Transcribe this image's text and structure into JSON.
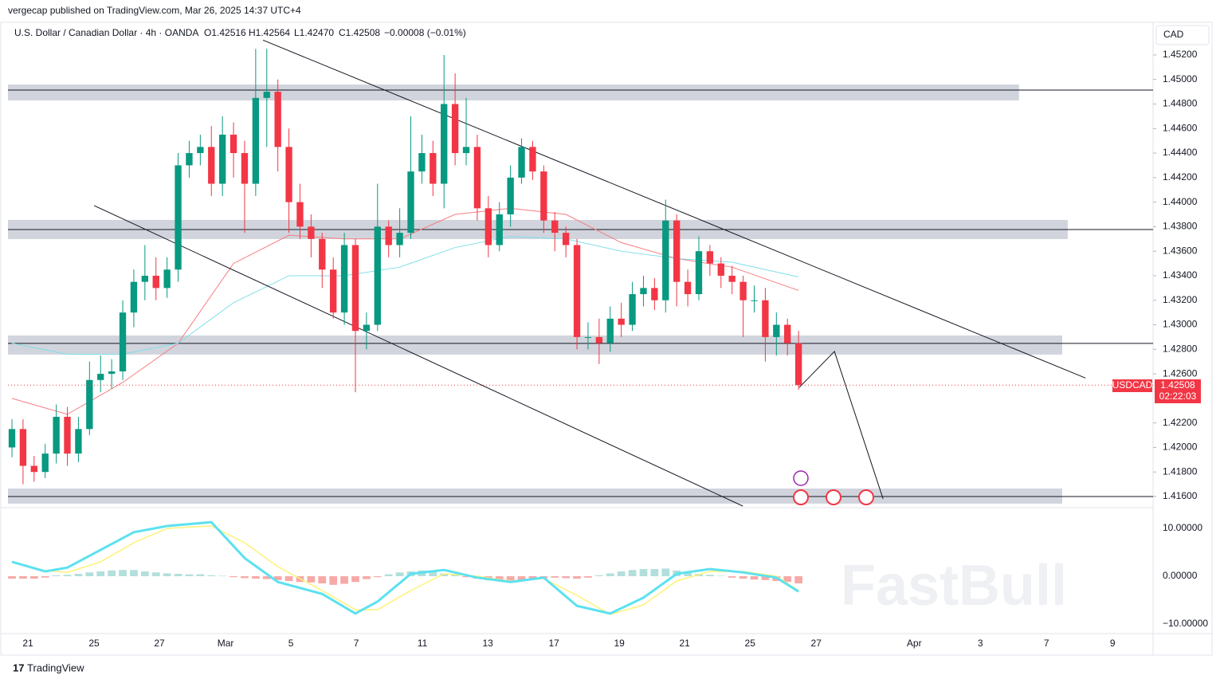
{
  "header": {
    "publisher": "vergecap published on TradingView.com, Mar 26, 2025 14:37 UTC+4",
    "symbol": "U.S. Dollar / Canadian Dollar · 4h · OANDA",
    "open": "O1.42516",
    "high": "H1.42564",
    "low": "L1.42470",
    "close": "C1.42508",
    "change": "−0.00008 (−0.01%)",
    "currency": "CAD"
  },
  "price_tag": {
    "symbol": "USDCAD",
    "price": "1.42508",
    "countdown": "02:22:03"
  },
  "watermark": "FastBull",
  "footer": "TradingView",
  "chart_data": [
    {
      "type": "candlestick",
      "up_color": "#089981",
      "down_color": "#f23645",
      "xlim": [
        -0.36,
        103.0
      ],
      "ylim": [
        1.41509,
        1.45466
      ],
      "xticks": [
        {
          "value": 1.44,
          "label": "21"
        },
        {
          "value": 7.41,
          "label": "25"
        },
        {
          "value": 13.31,
          "label": "27"
        },
        {
          "value": 19.28,
          "label": "Mar"
        },
        {
          "value": 25.18,
          "label": "5"
        },
        {
          "value": 31.08,
          "label": "7"
        },
        {
          "value": 37.05,
          "label": "11"
        },
        {
          "value": 42.95,
          "label": "13"
        },
        {
          "value": 48.92,
          "label": "17"
        },
        {
          "value": 54.82,
          "label": "19"
        },
        {
          "value": 60.72,
          "label": "21"
        },
        {
          "value": 66.62,
          "label": "25"
        },
        {
          "value": 72.59,
          "label": "27"
        },
        {
          "value": 81.44,
          "label": "Apr"
        },
        {
          "value": 87.41,
          "label": "3"
        },
        {
          "value": 93.38,
          "label": "7"
        },
        {
          "value": 99.35,
          "label": "9"
        }
      ],
      "yticks": [
        {
          "value": 1.452,
          "label": "1.45200"
        },
        {
          "value": 1.45,
          "label": "1.45000"
        },
        {
          "value": 1.448,
          "label": "1.44800"
        },
        {
          "value": 1.446,
          "label": "1.44600"
        },
        {
          "value": 1.444,
          "label": "1.44400"
        },
        {
          "value": 1.442,
          "label": "1.44200"
        },
        {
          "value": 1.44,
          "label": "1.44000"
        },
        {
          "value": 1.438,
          "label": "1.43800"
        },
        {
          "value": 1.436,
          "label": "1.43600"
        },
        {
          "value": 1.434,
          "label": "1.43400"
        },
        {
          "value": 1.432,
          "label": "1.43200"
        },
        {
          "value": 1.43,
          "label": "1.43000"
        },
        {
          "value": 1.428,
          "label": "1.42800"
        },
        {
          "value": 1.426,
          "label": "1.42600"
        },
        {
          "value": 1.422,
          "label": "1.42200"
        },
        {
          "value": 1.42,
          "label": "1.42000"
        },
        {
          "value": 1.418,
          "label": "1.41800"
        },
        {
          "value": 1.416,
          "label": "1.41600"
        }
      ],
      "open": [
        1.42,
        1.4215,
        1.4185,
        1.418,
        1.4195,
        1.4225,
        1.4195,
        1.4215,
        1.4255,
        1.426,
        1.4262,
        1.431,
        1.4335,
        1.434,
        1.433,
        1.4345,
        1.443,
        1.444,
        1.4445,
        1.4415,
        1.4455,
        1.444,
        1.4415,
        1.4485,
        1.449,
        1.4445,
        1.44,
        1.438,
        1.437,
        1.4345,
        1.431,
        1.4365,
        1.4295,
        1.43,
        1.438,
        1.4365,
        1.4375,
        1.4425,
        1.444,
        1.4415,
        1.448,
        1.444,
        1.4445,
        1.4395,
        1.4365,
        1.439,
        1.442,
        1.4445,
        1.4425,
        1.4385,
        1.4375,
        1.4365,
        1.429,
        1.429,
        1.4285,
        1.4305,
        1.43,
        1.4325,
        1.433,
        1.432,
        1.4385,
        1.4335,
        1.4325,
        1.436,
        1.435,
        1.434,
        1.4335,
        1.432,
        1.432,
        1.429,
        1.43,
        1.4285
      ],
      "high": [
        1.4223,
        1.4223,
        1.4193,
        1.4203,
        1.4235,
        1.4233,
        1.4225,
        1.427,
        1.4275,
        1.4272,
        1.432,
        1.4345,
        1.4365,
        1.4355,
        1.4355,
        1.444,
        1.445,
        1.4455,
        1.4462,
        1.447,
        1.4465,
        1.445,
        1.4525,
        1.4525,
        1.45,
        1.446,
        1.4415,
        1.439,
        1.4375,
        1.4355,
        1.4375,
        1.437,
        1.431,
        1.4415,
        1.4385,
        1.4395,
        1.447,
        1.4455,
        1.445,
        1.452,
        1.4505,
        1.4485,
        1.4455,
        1.4405,
        1.44,
        1.443,
        1.4452,
        1.445,
        1.443,
        1.4392,
        1.438,
        1.437,
        1.4302,
        1.4305,
        1.4315,
        1.4318,
        1.4335,
        1.434,
        1.4338,
        1.4402,
        1.439,
        1.4345,
        1.4372,
        1.4365,
        1.4355,
        1.4348,
        1.434,
        1.4332,
        1.433,
        1.431,
        1.4305,
        1.4295
      ],
      "low": [
        1.4192,
        1.417,
        1.4172,
        1.4175,
        1.4187,
        1.4185,
        1.4188,
        1.421,
        1.4245,
        1.4248,
        1.4255,
        1.4298,
        1.432,
        1.432,
        1.4322,
        1.4335,
        1.442,
        1.443,
        1.4405,
        1.4405,
        1.442,
        1.4375,
        1.4405,
        1.4445,
        1.4425,
        1.4375,
        1.437,
        1.4355,
        1.433,
        1.4305,
        1.43,
        1.4245,
        1.428,
        1.4295,
        1.4355,
        1.4355,
        1.437,
        1.4415,
        1.4405,
        1.4395,
        1.443,
        1.443,
        1.4385,
        1.4355,
        1.436,
        1.438,
        1.4415,
        1.4418,
        1.4375,
        1.436,
        1.4355,
        1.428,
        1.428,
        1.4268,
        1.4278,
        1.429,
        1.4295,
        1.4315,
        1.4312,
        1.431,
        1.4315,
        1.4315,
        1.432,
        1.434,
        1.433,
        1.4325,
        1.429,
        1.431,
        1.427,
        1.4275,
        1.4275,
        1.4247
      ],
      "close": [
        1.4215,
        1.4185,
        1.418,
        1.4195,
        1.4225,
        1.4195,
        1.4215,
        1.4255,
        1.426,
        1.4262,
        1.431,
        1.4335,
        1.434,
        1.433,
        1.4345,
        1.443,
        1.444,
        1.4445,
        1.4415,
        1.4455,
        1.444,
        1.4415,
        1.4485,
        1.449,
        1.4445,
        1.44,
        1.438,
        1.437,
        1.4345,
        1.431,
        1.4365,
        1.4295,
        1.43,
        1.438,
        1.4365,
        1.4375,
        1.4425,
        1.444,
        1.4415,
        1.448,
        1.444,
        1.4445,
        1.4395,
        1.4365,
        1.439,
        1.442,
        1.4445,
        1.4425,
        1.4385,
        1.4375,
        1.4365,
        1.429,
        1.429,
        1.4285,
        1.4305,
        1.43,
        1.4325,
        1.433,
        1.432,
        1.4385,
        1.4335,
        1.4325,
        1.436,
        1.435,
        1.434,
        1.4335,
        1.432,
        1.432,
        1.429,
        1.43,
        1.4285,
        1.42508
      ],
      "series": [
        {
          "color": "#f77c80",
          "x": [
            0,
            5,
            10,
            15,
            20,
            25,
            30,
            35,
            40,
            45,
            50,
            55,
            60,
            65,
            71
          ],
          "values": [
            1.424,
            1.4227,
            1.4253,
            1.4285,
            1.435,
            1.4373,
            1.437,
            1.437,
            1.439,
            1.4395,
            1.439,
            1.4367,
            1.4354,
            1.4347,
            1.4328
          ]
        },
        {
          "color": "#80deea",
          "x": [
            0,
            5,
            10,
            15,
            20,
            25,
            30,
            35,
            40,
            45,
            50,
            55,
            60,
            65,
            71
          ],
          "values": [
            1.4285,
            1.4276,
            1.4276,
            1.4285,
            1.4318,
            1.434,
            1.434,
            1.4347,
            1.4363,
            1.4372,
            1.437,
            1.436,
            1.4354,
            1.4351,
            1.4339
          ]
        }
      ],
      "zones": [
        {
          "x": [
            -0.36,
            90.9
          ],
          "y": [
            1.44829,
            1.44959
          ],
          "line": 1.44914
        },
        {
          "x": [
            -0.36,
            95.3
          ],
          "y": [
            1.43699,
            1.43855
          ],
          "line": 1.43777
        },
        {
          "x": [
            -0.36,
            94.8
          ],
          "y": [
            1.42757,
            1.42913
          ],
          "line": 1.42848
        },
        {
          "x": [
            -0.36,
            94.8
          ],
          "y": [
            1.41542,
            1.41665
          ],
          "line": 1.416
        }
      ],
      "lines": [
        {
          "x": [
            22.66,
            96.9
          ],
          "y": [
            1.45321,
            1.42566
          ]
        },
        {
          "x": [
            7.41,
            65.97
          ],
          "y": [
            1.43972,
            1.41522
          ]
        },
        {
          "x": [
            71.07,
            74.24,
            78.63
          ],
          "y": [
            1.4249,
            1.42783,
            1.41581
          ]
        }
      ]
    },
    {
      "type": "macd",
      "xlim": [
        -0.36,
        103.0
      ],
      "ylim": [
        -12,
        14.33
      ],
      "yticks": [
        {
          "value": 10,
          "label": "10.00000"
        },
        {
          "value": 0,
          "label": "0.00000"
        },
        {
          "value": -10,
          "label": "−10.00000"
        }
      ],
      "histogram": [
        -0.5,
        -0.5,
        -0.5,
        -0.3,
        0.2,
        0.3,
        0.5,
        0.8,
        1,
        1.2,
        1.3,
        1.3,
        1,
        0.8,
        0.6,
        0.5,
        0.4,
        0.4,
        0.2,
        0.1,
        -0.2,
        -0.4,
        -0.5,
        -0.6,
        -0.8,
        -1,
        -1.2,
        -1.3,
        -1.5,
        -1.8,
        -1.6,
        -1.2,
        -0.6,
        -0.2,
        0.4,
        0.8,
        1,
        1.2,
        1,
        0.6,
        0.3,
        -0.2,
        -0.5,
        -0.8,
        -1,
        -1,
        -0.8,
        -0.6,
        -0.4,
        -0.3,
        -0.4,
        -0.5,
        -0.3,
        0.2,
        0.6,
        1,
        1.3,
        1.5,
        1.5,
        1.6,
        1.2,
        0.8,
        0.5,
        0.3,
        0.1,
        -0.3,
        -0.5,
        -0.7,
        -0.8,
        -1,
        -1.2,
        -1.5
      ],
      "hist_up": "#b2dfdb",
      "hist_down": "#f7a9a7",
      "series": [
        {
          "color": "#fff176",
          "x": [
            0,
            3,
            5,
            8,
            11,
            14,
            18,
            21,
            24,
            28,
            31,
            33,
            36,
            39,
            42,
            45,
            48,
            51,
            54,
            57,
            60,
            63,
            66,
            69,
            71
          ],
          "values": [
            3,
            1.2,
            0.8,
            3,
            7,
            10,
            10.5,
            7,
            2,
            -3,
            -7,
            -7,
            -3,
            0.5,
            0,
            -1,
            -0.5,
            -4,
            -8,
            -6,
            -1,
            1,
            1,
            0,
            -3
          ]
        },
        {
          "color": "#5ce1f0",
          "x": [
            0,
            3,
            5,
            8,
            11,
            14,
            18,
            21,
            24,
            28,
            31,
            33,
            36,
            39,
            42,
            45,
            48,
            51,
            54,
            57,
            60,
            63,
            66,
            69,
            71
          ],
          "values": [
            3,
            1,
            1.8,
            5.5,
            9.2,
            10.5,
            11.3,
            3.8,
            -1.2,
            -3.7,
            -7.8,
            -5.3,
            0.5,
            1.3,
            -0.3,
            -1.2,
            -0.3,
            -6.2,
            -7.8,
            -4.5,
            0.5,
            1.5,
            0.8,
            -0.3,
            -3.2
          ]
        }
      ]
    }
  ]
}
